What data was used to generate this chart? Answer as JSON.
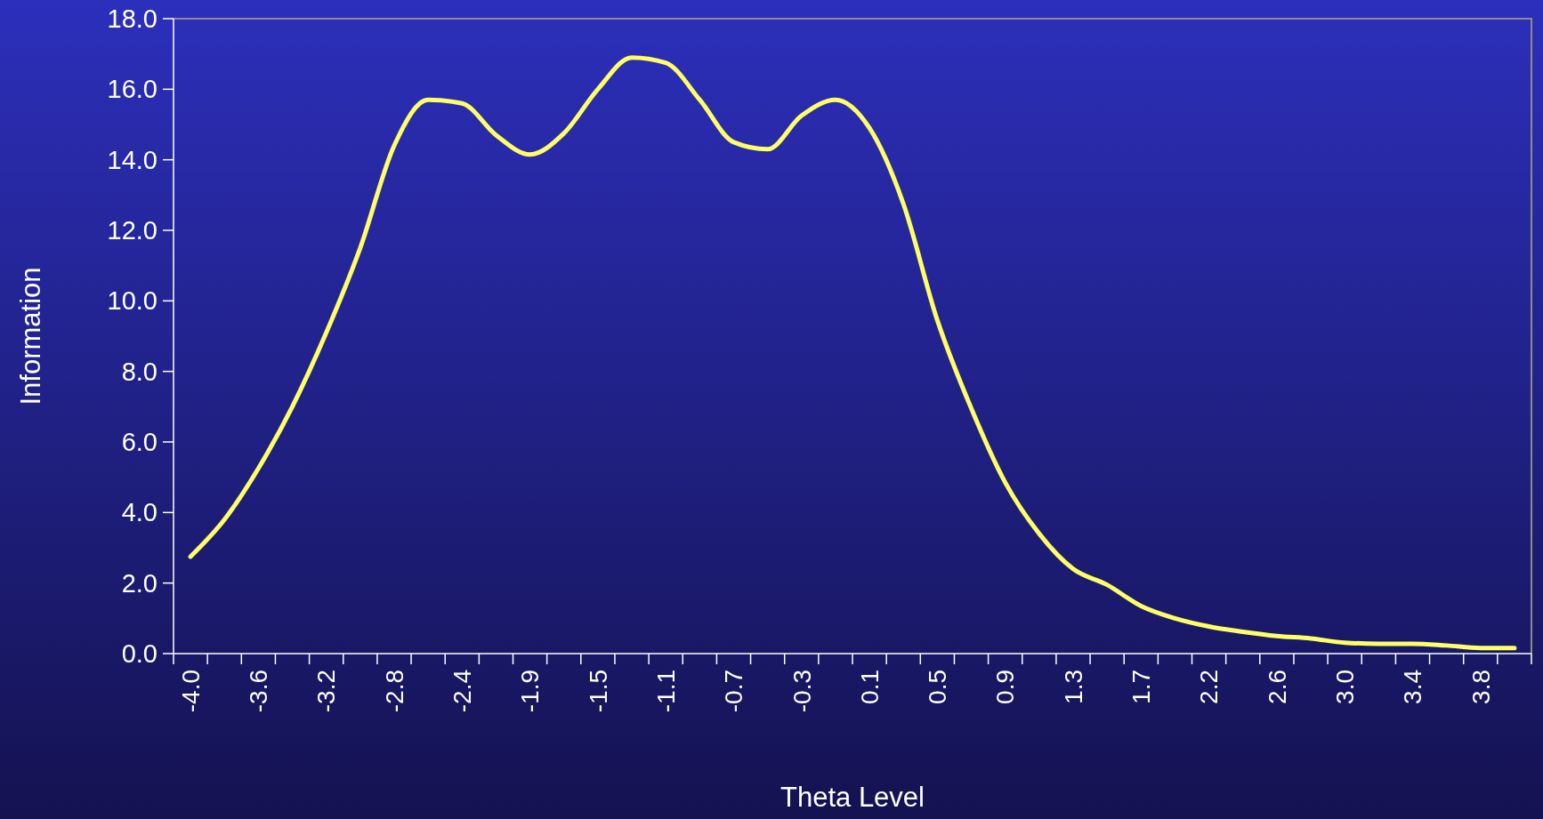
{
  "chart_data": {
    "type": "line",
    "xlabel": "Theta Level",
    "ylabel": "Information",
    "categories": [
      "-4.0",
      null,
      "-3.6",
      null,
      "-3.2",
      null,
      "-2.8",
      null,
      "-2.4",
      null,
      "-1.9",
      null,
      "-1.5",
      null,
      "-1.1",
      null,
      "-0.7",
      null,
      "-0.3",
      null,
      "0.1",
      null,
      "0.5",
      null,
      "0.9",
      null,
      "1.3",
      null,
      "1.7",
      null,
      "2.2",
      null,
      "2.6",
      null,
      "3.0",
      null,
      "3.4",
      null,
      "3.8",
      null
    ],
    "series": [
      {
        "color": "#ffff66",
        "values": [
          2.75,
          3.8,
          5.25,
          7.0,
          9.1,
          11.5,
          14.4,
          15.7,
          15.6,
          14.7,
          14.15,
          14.75,
          16.0,
          16.9,
          16.75,
          15.7,
          14.5,
          14.3,
          15.25,
          15.7,
          14.9,
          12.75,
          9.45,
          6.95,
          4.85,
          3.4,
          2.4,
          1.95,
          1.35,
          1.0,
          0.77,
          0.62,
          0.5,
          0.43,
          0.31,
          0.28,
          0.28,
          0.23,
          0.16,
          0.16
        ]
      }
    ],
    "ylim": [
      0,
      18
    ],
    "yticks": [
      {
        "value": 0,
        "label": "0.0"
      },
      {
        "value": 2,
        "label": "2.0"
      },
      {
        "value": 4,
        "label": "4.0"
      },
      {
        "value": 6,
        "label": "6.0"
      },
      {
        "value": 8,
        "label": "8.0"
      },
      {
        "value": 10,
        "label": "10.0"
      },
      {
        "value": 12,
        "label": "12.0"
      },
      {
        "value": 14,
        "label": "14.0"
      },
      {
        "value": 16,
        "label": "16.0"
      },
      {
        "value": 18,
        "label": "18.0"
      }
    ],
    "grid": false,
    "marker": "none",
    "line_style": "solid"
  }
}
